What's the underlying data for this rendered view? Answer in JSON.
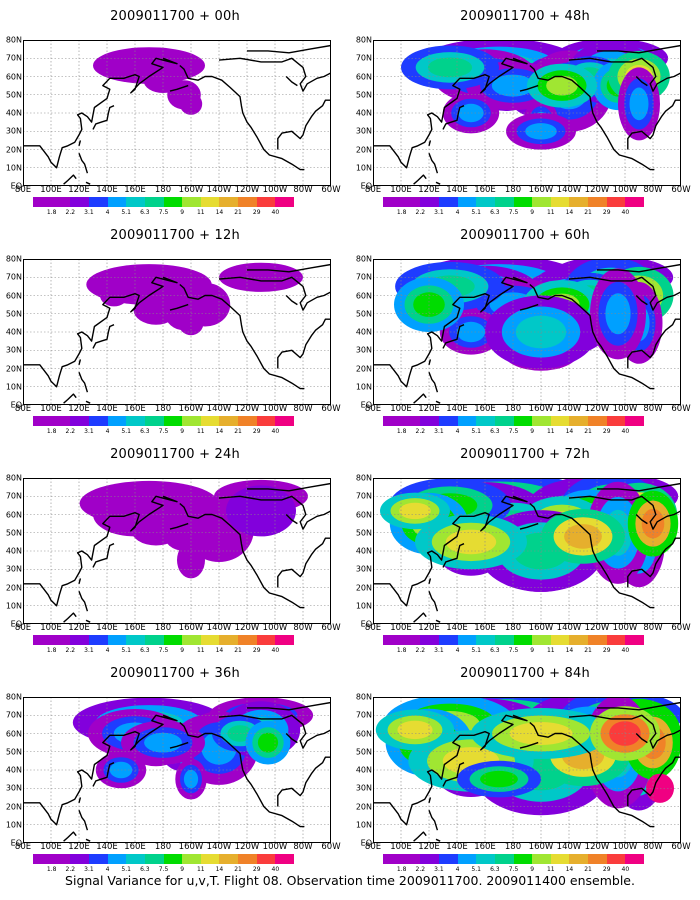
{
  "caption": "Signal Variance for u,v,T. Flight 08. Observation time 2009011700. 2009011400 ensemble.",
  "panels": [
    {
      "title": "2009011700 + 00h",
      "col": 0,
      "row": 0,
      "intensity": 0
    },
    {
      "title": "2009011700 + 12h",
      "col": 0,
      "row": 1,
      "intensity": 1
    },
    {
      "title": "2009011700 + 24h",
      "col": 0,
      "row": 2,
      "intensity": 2
    },
    {
      "title": "2009011700 + 36h",
      "col": 0,
      "row": 3,
      "intensity": 3
    },
    {
      "title": "2009011700 + 48h",
      "col": 1,
      "row": 0,
      "intensity": 4
    },
    {
      "title": "2009011700 + 60h",
      "col": 1,
      "row": 1,
      "intensity": 5
    },
    {
      "title": "2009011700 + 72h",
      "col": 1,
      "row": 2,
      "intensity": 6
    },
    {
      "title": "2009011700 + 84h",
      "col": 1,
      "row": 3,
      "intensity": 7
    }
  ],
  "lat_labels": [
    "80N",
    "70N",
    "60N",
    "50N",
    "40N",
    "30N",
    "20N",
    "10N",
    "EQ"
  ],
  "lon_labels": [
    "80E",
    "100E",
    "120E",
    "140E",
    "160E",
    "180",
    "160W",
    "140W",
    "120W",
    "100W",
    "80W",
    "60W"
  ],
  "colorbar": {
    "labels": [
      "1.8",
      "2.2",
      "3.1",
      "4",
      "5.1",
      "6.3",
      "7.5",
      "9",
      "11",
      "14",
      "21",
      "29",
      "40"
    ],
    "colors": [
      "#a000c8",
      "#8200dc",
      "#1e3cff",
      "#00a0ff",
      "#00c8c8",
      "#00d28c",
      "#00dc00",
      "#a0e632",
      "#e6dc32",
      "#e6af2d",
      "#f08228",
      "#fa3c3c",
      "#f00082"
    ]
  }
}
